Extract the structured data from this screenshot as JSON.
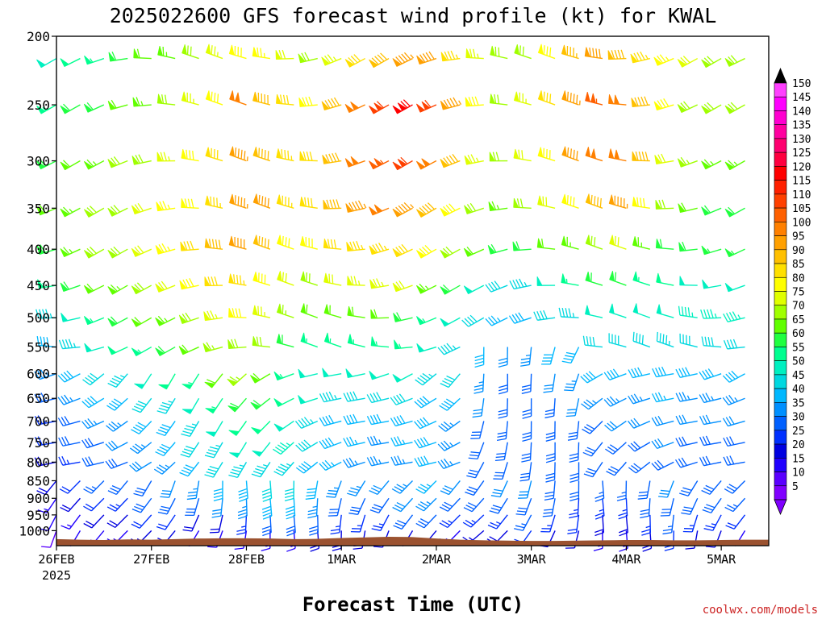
{
  "chart_data": {
    "type": "wind-barb-time-height",
    "title": "2025022600 GFS forecast wind profile (kt) for KWAL",
    "xlabel": "Forecast Time (UTC)",
    "ylabel": "",
    "credit": "coolwx.com/models",
    "units": "kt",
    "y_axis": {
      "scale": "log-pressure",
      "reversed": true,
      "range": [
        1050,
        200
      ],
      "tick_labels": [
        200,
        250,
        300,
        350,
        400,
        450,
        500,
        550,
        600,
        650,
        700,
        750,
        800,
        850,
        900,
        950,
        1000
      ]
    },
    "x_axis": {
      "range": [
        "2025-02-26 00Z",
        "2025-03-05 12Z"
      ],
      "tick_labels": [
        "26FEB",
        "27FEB",
        "28FEB",
        "1MAR",
        "2MAR",
        "3MAR",
        "4MAR",
        "5MAR"
      ],
      "first_tick_year": "2025"
    },
    "colorbar": {
      "levels": [
        5,
        10,
        15,
        20,
        25,
        30,
        35,
        40,
        45,
        50,
        55,
        60,
        65,
        70,
        75,
        80,
        85,
        90,
        95,
        100,
        105,
        110,
        115,
        120,
        125,
        130,
        135,
        140,
        145,
        150
      ],
      "colors": [
        "#8000ff",
        "#5a00ff",
        "#2000ff",
        "#0000e0",
        "#0030ff",
        "#0060ff",
        "#0090ff",
        "#00b8ff",
        "#00d8e0",
        "#00f0c0",
        "#00ff90",
        "#20ff40",
        "#60ff00",
        "#a0ff00",
        "#e0ff00",
        "#ffff00",
        "#ffe000",
        "#ffc000",
        "#ffa000",
        "#ff8000",
        "#ff6000",
        "#ff4000",
        "#ff2000",
        "#ff0000",
        "#ff0040",
        "#ff0070",
        "#ff00a0",
        "#ff00d0",
        "#ff00ff",
        "#ff40ff"
      ],
      "arrows": "both-ends"
    },
    "levels_hpa": [
      1000,
      950,
      900,
      850,
      800,
      750,
      700,
      650,
      600,
      550,
      500,
      450,
      400,
      350,
      300,
      250,
      215
    ],
    "times_hours": [
      0,
      6,
      12,
      18,
      24,
      30,
      36,
      42,
      48,
      54,
      60,
      66,
      72,
      78,
      84,
      90,
      96,
      102,
      108,
      114,
      120,
      126,
      132,
      138,
      144,
      150,
      156,
      162,
      168,
      174,
      180
    ],
    "speed_kt_approx": [
      [
        10,
        12,
        14,
        15,
        17,
        18,
        15,
        14,
        12,
        14,
        15,
        18,
        18,
        20,
        20,
        18,
        16,
        14,
        16,
        20,
        22,
        20,
        18,
        15,
        15,
        20,
        22,
        20,
        18,
        15,
        16
      ],
      [
        12,
        15,
        18,
        20,
        22,
        22,
        20,
        20,
        25,
        30,
        30,
        28,
        25,
        25,
        25,
        28,
        28,
        24,
        24,
        25,
        26,
        24,
        22,
        20,
        20,
        25,
        26,
        25,
        24,
        22,
        24
      ],
      [
        15,
        18,
        22,
        25,
        28,
        30,
        30,
        32,
        35,
        38,
        40,
        35,
        30,
        30,
        30,
        32,
        35,
        30,
        28,
        30,
        30,
        28,
        25,
        24,
        24,
        28,
        30,
        28,
        28,
        26,
        28
      ],
      [
        18,
        22,
        26,
        28,
        30,
        32,
        35,
        38,
        40,
        42,
        42,
        38,
        34,
        33,
        32,
        34,
        36,
        32,
        30,
        32,
        32,
        30,
        28,
        27,
        26,
        30,
        32,
        30,
        30,
        28,
        30
      ],
      [
        20,
        25,
        28,
        30,
        32,
        35,
        38,
        42,
        45,
        45,
        45,
        40,
        36,
        35,
        34,
        35,
        38,
        34,
        30,
        30,
        30,
        30,
        28,
        28,
        28,
        30,
        30,
        30,
        30,
        30,
        30
      ],
      [
        22,
        28,
        30,
        32,
        35,
        38,
        42,
        45,
        48,
        48,
        46,
        42,
        38,
        36,
        35,
        36,
        38,
        35,
        30,
        30,
        28,
        28,
        28,
        28,
        30,
        30,
        32,
        30,
        30,
        30,
        30
      ],
      [
        25,
        30,
        33,
        35,
        38,
        40,
        45,
        50,
        52,
        52,
        48,
        44,
        40,
        38,
        38,
        38,
        38,
        35,
        30,
        28,
        28,
        28,
        30,
        30,
        32,
        32,
        32,
        32,
        32,
        32,
        32
      ],
      [
        30,
        35,
        38,
        40,
        42,
        45,
        50,
        55,
        60,
        58,
        52,
        48,
        45,
        42,
        42,
        42,
        40,
        38,
        32,
        28,
        28,
        30,
        32,
        34,
        35,
        35,
        36,
        35,
        35,
        35,
        35
      ],
      [
        35,
        40,
        42,
        45,
        48,
        52,
        55,
        62,
        66,
        62,
        55,
        50,
        48,
        48,
        48,
        48,
        45,
        42,
        35,
        30,
        30,
        32,
        35,
        38,
        38,
        38,
        40,
        38,
        38,
        38,
        38
      ],
      [
        40,
        45,
        48,
        52,
        55,
        58,
        62,
        66,
        70,
        68,
        60,
        55,
        55,
        55,
        55,
        54,
        50,
        45,
        38,
        32,
        34,
        38,
        40,
        42,
        42,
        42,
        44,
        42,
        42,
        42,
        42
      ],
      [
        45,
        50,
        55,
        58,
        62,
        65,
        70,
        75,
        78,
        75,
        66,
        62,
        62,
        62,
        62,
        60,
        55,
        50,
        42,
        36,
        40,
        42,
        45,
        48,
        48,
        48,
        48,
        46,
        46,
        46,
        46
      ],
      [
        55,
        60,
        62,
        65,
        68,
        72,
        78,
        82,
        85,
        80,
        72,
        70,
        72,
        75,
        75,
        72,
        65,
        60,
        50,
        42,
        45,
        50,
        55,
        60,
        60,
        55,
        52,
        50,
        50,
        50,
        50
      ],
      [
        60,
        65,
        68,
        70,
        72,
        76,
        82,
        88,
        92,
        88,
        80,
        78,
        82,
        85,
        85,
        82,
        78,
        70,
        62,
        58,
        60,
        62,
        65,
        70,
        72,
        65,
        60,
        58,
        56,
        56,
        56
      ],
      [
        62,
        65,
        68,
        70,
        72,
        76,
        80,
        85,
        95,
        92,
        85,
        82,
        88,
        95,
        98,
        95,
        88,
        80,
        70,
        65,
        68,
        72,
        80,
        90,
        95,
        80,
        68,
        62,
        60,
        60,
        60
      ],
      [
        60,
        62,
        65,
        68,
        70,
        74,
        78,
        82,
        95,
        90,
        85,
        82,
        88,
        98,
        105,
        110,
        100,
        88,
        75,
        68,
        72,
        80,
        92,
        100,
        100,
        88,
        72,
        66,
        65,
        65,
        65
      ],
      [
        55,
        58,
        60,
        62,
        65,
        70,
        74,
        78,
        100,
        88,
        82,
        80,
        88,
        98,
        110,
        118,
        110,
        95,
        80,
        70,
        75,
        82,
        95,
        105,
        100,
        90,
        78,
        70,
        68,
        68,
        68
      ],
      [
        50,
        52,
        55,
        58,
        62,
        65,
        70,
        74,
        78,
        76,
        72,
        70,
        74,
        82,
        90,
        95,
        92,
        85,
        75,
        68,
        70,
        78,
        86,
        92,
        90,
        84,
        76,
        72,
        70,
        70,
        70
      ]
    ]
  }
}
